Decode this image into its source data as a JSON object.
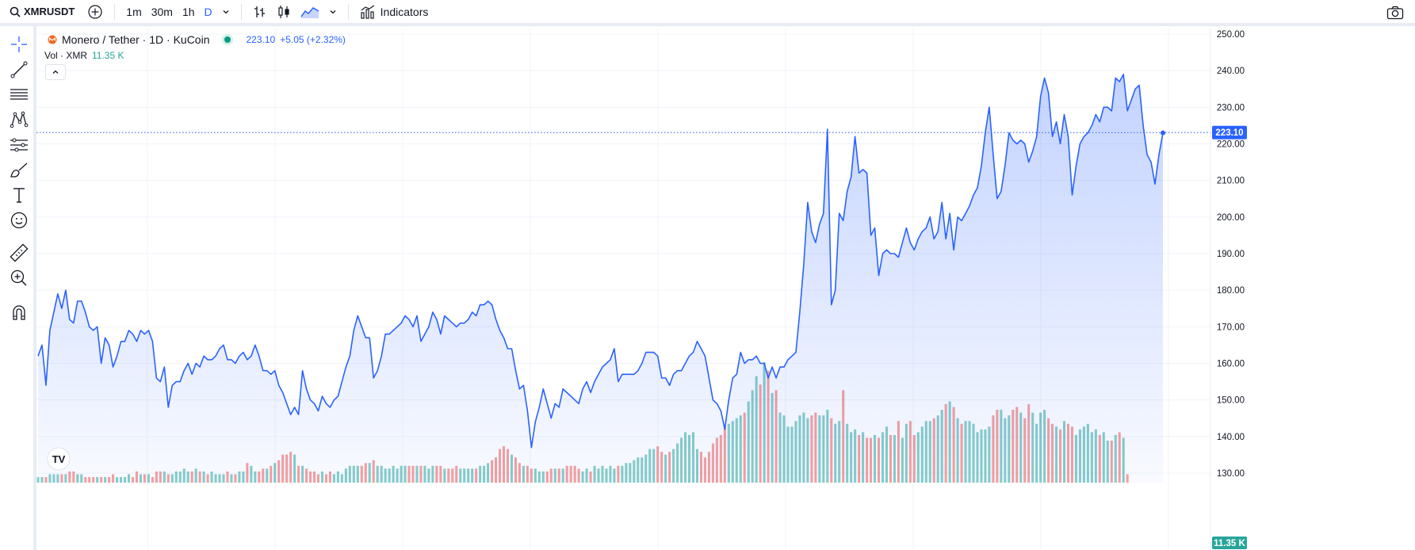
{
  "toolbar": {
    "symbol": "XMRUSDT",
    "intervals": [
      "1m",
      "30m",
      "1h",
      "D"
    ],
    "active_interval": "D",
    "indicators_label": "Indicators"
  },
  "legend": {
    "title": "Monero / Tether · 1D · KuCoin",
    "price": "223.10",
    "change": "+5.05 (+2.32%)",
    "vol_label": "Vol · XMR",
    "vol_value": "11.35 K"
  },
  "price_axis": {
    "ticks": [
      "250.00",
      "240.00",
      "230.00",
      "220.00",
      "210.00",
      "200.00",
      "190.00",
      "180.00",
      "170.00",
      "160.00",
      "150.00",
      "140.00",
      "130.00"
    ],
    "current_price_label": "223.10",
    "current_volume_label": "11.35 K"
  },
  "colors": {
    "line": "#2962ff",
    "up_volume": "#26a69a",
    "down_volume": "#ef5350",
    "price_label_bg": "#2962ff",
    "volume_label_bg": "#26a69a"
  },
  "chart_data": {
    "type": "area",
    "ylim": [
      128,
      252
    ],
    "price_series": [
      162,
      165,
      154,
      169,
      174,
      179,
      175,
      180,
      172,
      171,
      177,
      177,
      174,
      170,
      169,
      170,
      160,
      167,
      165,
      159,
      162,
      166,
      166,
      169,
      168,
      166,
      169,
      168,
      169,
      166,
      156,
      155,
      159,
      148,
      154,
      155,
      155,
      158,
      160,
      157,
      160,
      159,
      162,
      161,
      161,
      162,
      164,
      165,
      161,
      161,
      160,
      162,
      163,
      161,
      162,
      165,
      162,
      158,
      158,
      157,
      158,
      154,
      152,
      149,
      146,
      148,
      146,
      158,
      153,
      150,
      149,
      147,
      151,
      149,
      148,
      150,
      151,
      155,
      159,
      162,
      169,
      173,
      170,
      167,
      167,
      156,
      158,
      162,
      168,
      168,
      169,
      170,
      171,
      173,
      172,
      170,
      173,
      166,
      168,
      170,
      174,
      172,
      168,
      173,
      172,
      171,
      170,
      171,
      171,
      172,
      174,
      173,
      176,
      176,
      177,
      176,
      172,
      169,
      167,
      164,
      164,
      158,
      153,
      154,
      147,
      137,
      144,
      148,
      153,
      149,
      145,
      149,
      148,
      153,
      152,
      151,
      150,
      149,
      153,
      155,
      152,
      155,
      157,
      159,
      160,
      161,
      164,
      155,
      157,
      157,
      157,
      157,
      158,
      160,
      163,
      163,
      163,
      162,
      156,
      156,
      154,
      157,
      158,
      158,
      160,
      162,
      163,
      166,
      164,
      162,
      156,
      150,
      149,
      147,
      142,
      150,
      156,
      157,
      163,
      160,
      161,
      161,
      162,
      160,
      160,
      156,
      159,
      156,
      159,
      159,
      161,
      162,
      163,
      174,
      187,
      204,
      196,
      193,
      198,
      201,
      224,
      176,
      180,
      201,
      199,
      207,
      211,
      222,
      212,
      213,
      212,
      195,
      197,
      184,
      190,
      191,
      190,
      190,
      189,
      193,
      197,
      193,
      191,
      194,
      196,
      197,
      200,
      194,
      196,
      204,
      194,
      201,
      191,
      200,
      199,
      201,
      203,
      206,
      208,
      214,
      223,
      230,
      217,
      205,
      207,
      214,
      223,
      221,
      220,
      221,
      220,
      215,
      218,
      222,
      233,
      238,
      234,
      222,
      226,
      220,
      228,
      222,
      206,
      214,
      220,
      222,
      223,
      225,
      228,
      226,
      230,
      230,
      229,
      238,
      237,
      239,
      229,
      232,
      235,
      236,
      225,
      217,
      215,
      209,
      217,
      223
    ],
    "volume_series": [
      2,
      2,
      2,
      3,
      3,
      3,
      3,
      3,
      4,
      4,
      3,
      3,
      2,
      2,
      2,
      2,
      2,
      2,
      2,
      3,
      2,
      2,
      2,
      3,
      2,
      4,
      3,
      3,
      3,
      2,
      4,
      4,
      4,
      3,
      3,
      4,
      4,
      5,
      4,
      4,
      5,
      4,
      4,
      3,
      4,
      3,
      3,
      3,
      4,
      3,
      3,
      4,
      4,
      7,
      6,
      4,
      4,
      5,
      5,
      6,
      7,
      8,
      10,
      10,
      11,
      10,
      6,
      6,
      5,
      4,
      4,
      3,
      4,
      3,
      4,
      3,
      4,
      3,
      5,
      6,
      6,
      6,
      6,
      7,
      7,
      8,
      6,
      6,
      5,
      5,
      6,
      5,
      6,
      6,
      6,
      6,
      6,
      6,
      6,
      5,
      6,
      6,
      6,
      5,
      5,
      5,
      6,
      5,
      5,
      5,
      5,
      5,
      6,
      6,
      7,
      8,
      9,
      12,
      13,
      12,
      10,
      9,
      7,
      6,
      6,
      5,
      5,
      4,
      4,
      4,
      5,
      5,
      5,
      5,
      6,
      6,
      6,
      5,
      4,
      5,
      4,
      6,
      5,
      6,
      5,
      6,
      5,
      6,
      6,
      7,
      7,
      8,
      9,
      9,
      10,
      12,
      12,
      13,
      11,
      10,
      11,
      12,
      14,
      16,
      18,
      17,
      18,
      12,
      11,
      9,
      11,
      14,
      16,
      17,
      20,
      21,
      22,
      23,
      24,
      25,
      29,
      33,
      38,
      35,
      43,
      40,
      32,
      33,
      25,
      24,
      20,
      20,
      22,
      24,
      25,
      23,
      24,
      25,
      24,
      24,
      26,
      23,
      21,
      22,
      33,
      21,
      18,
      19,
      17,
      18,
      16,
      16,
      17,
      16,
      18,
      20,
      17,
      17,
      22,
      16,
      21,
      22,
      17,
      18,
      20,
      22,
      22,
      23,
      24,
      26,
      28,
      29,
      27,
      23,
      21,
      22,
      22,
      21,
      18,
      19,
      19,
      20,
      24,
      26,
      26,
      23,
      24,
      26,
      27,
      25,
      23,
      28,
      25,
      21,
      25,
      26,
      23,
      21,
      20,
      19,
      22,
      21,
      20,
      17,
      19,
      20,
      21,
      18,
      19,
      17,
      18,
      15,
      15,
      17,
      18,
      16,
      3
    ]
  }
}
